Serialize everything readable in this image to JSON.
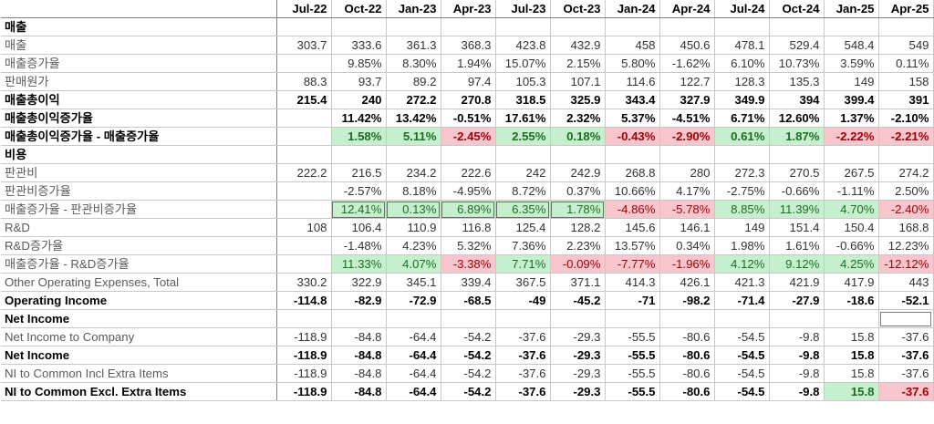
{
  "columns": [
    "Jul-22",
    "Oct-22",
    "Jan-23",
    "Apr-23",
    "Jul-23",
    "Oct-23",
    "Jan-24",
    "Apr-24",
    "Jul-24",
    "Oct-24",
    "Jan-25",
    "Apr-25"
  ],
  "rows": [
    {
      "label": "매출",
      "style": "bold",
      "cells": [
        "",
        "",
        "",
        "",
        "",
        "",
        "",
        "",
        "",
        "",
        "",
        ""
      ]
    },
    {
      "label": "매출",
      "style": "gray",
      "cells": [
        "303.7",
        "333.6",
        "361.3",
        "368.3",
        "423.8",
        "432.9",
        "458",
        "450.6",
        "478.1",
        "529.4",
        "548.4",
        "549"
      ]
    },
    {
      "label": "매출증가율",
      "style": "gray",
      "cells": [
        "",
        "9.85%",
        "8.30%",
        "1.94%",
        "15.07%",
        "2.15%",
        "5.80%",
        "-1.62%",
        "6.10%",
        "10.73%",
        "3.59%",
        "0.11%"
      ]
    },
    {
      "label": "판매원가",
      "style": "gray",
      "cells": [
        "88.3",
        "93.7",
        "89.2",
        "97.4",
        "105.3",
        "107.1",
        "114.6",
        "122.7",
        "128.3",
        "135.3",
        "149",
        "158"
      ]
    },
    {
      "label": "매출총이익",
      "style": "bold",
      "cells": [
        "215.4",
        "240",
        "272.2",
        "270.8",
        "318.5",
        "325.9",
        "343.4",
        "327.9",
        "349.9",
        "394",
        "399.4",
        "391"
      ]
    },
    {
      "label": "매출총이익증가율",
      "style": "bold",
      "cells": [
        "",
        "11.42%",
        "13.42%",
        "-0.51%",
        "17.61%",
        "2.32%",
        "5.37%",
        "-4.51%",
        "6.71%",
        "12.60%",
        "1.37%",
        "-2.10%"
      ]
    },
    {
      "label": "매출총이익증가율 - 매출증가율",
      "style": "bold",
      "cells": [
        "",
        "1.58%",
        "5.11%",
        "-2.45%",
        "2.55%",
        "0.18%",
        "-0.43%",
        "-2.90%",
        "0.61%",
        "1.87%",
        "-2.22%",
        "-2.21%"
      ],
      "fills": [
        "",
        "g",
        "g",
        "r",
        "g",
        "g",
        "r",
        "r",
        "g",
        "g",
        "r",
        "r"
      ]
    },
    {
      "label": "비용",
      "style": "bold",
      "cells": [
        "",
        "",
        "",
        "",
        "",
        "",
        "",
        "",
        "",
        "",
        "",
        ""
      ]
    },
    {
      "label": "판관비",
      "style": "gray",
      "cells": [
        "222.2",
        "216.5",
        "234.2",
        "222.6",
        "242",
        "242.9",
        "268.8",
        "280",
        "272.3",
        "270.5",
        "267.5",
        "274.2"
      ]
    },
    {
      "label": "판관비증가율",
      "style": "gray",
      "cells": [
        "",
        "-2.57%",
        "8.18%",
        "-4.95%",
        "8.72%",
        "0.37%",
        "10.66%",
        "4.17%",
        "-2.75%",
        "-0.66%",
        "-1.11%",
        "2.50%"
      ]
    },
    {
      "label": "매출증가율 - 판관비증가율",
      "style": "gray",
      "cells": [
        "",
        "12.41%",
        "0.13%",
        "6.89%",
        "6.35%",
        "1.78%",
        "-4.86%",
        "-5.78%",
        "8.85%",
        "11.39%",
        "4.70%",
        "-2.40%"
      ],
      "fills": [
        "",
        "g",
        "g",
        "g",
        "g",
        "g",
        "r",
        "r",
        "g",
        "g",
        "g",
        "r"
      ],
      "boxed": [
        1,
        2,
        3,
        4,
        5
      ]
    },
    {
      "label": "R&D",
      "style": "gray",
      "cells": [
        "108",
        "106.4",
        "110.9",
        "116.8",
        "125.4",
        "128.2",
        "145.6",
        "146.1",
        "149",
        "151.4",
        "150.4",
        "168.8"
      ]
    },
    {
      "label": "R&D증가율",
      "style": "gray",
      "cells": [
        "",
        "-1.48%",
        "4.23%",
        "5.32%",
        "7.36%",
        "2.23%",
        "13.57%",
        "0.34%",
        "1.98%",
        "1.61%",
        "-0.66%",
        "12.23%"
      ]
    },
    {
      "label": "매출증가율 - R&D증가율",
      "style": "gray",
      "cells": [
        "",
        "11.33%",
        "4.07%",
        "-3.38%",
        "7.71%",
        "-0.09%",
        "-7.77%",
        "-1.96%",
        "4.12%",
        "9.12%",
        "4.25%",
        "-12.12%"
      ],
      "fills": [
        "",
        "g",
        "g",
        "r",
        "g",
        "r",
        "r",
        "r",
        "g",
        "g",
        "g",
        "r"
      ]
    },
    {
      "label": "Other Operating Expenses, Total",
      "style": "gray",
      "cells": [
        "330.2",
        "322.9",
        "345.1",
        "339.4",
        "367.5",
        "371.1",
        "414.3",
        "426.1",
        "421.3",
        "421.9",
        "417.9",
        "443"
      ]
    },
    {
      "label": "Operating Income",
      "style": "bold",
      "cells": [
        "-114.8",
        "-82.9",
        "-72.9",
        "-68.5",
        "-49",
        "-45.2",
        "-71",
        "-98.2",
        "-71.4",
        "-27.9",
        "-18.6",
        "-52.1"
      ]
    },
    {
      "label": "Net Income",
      "style": "bold",
      "cells": [
        "",
        "",
        "",
        "",
        "",
        "",
        "",
        "",
        "",
        "",
        "",
        ""
      ],
      "selected": [
        11
      ]
    },
    {
      "label": "Net Income to Company",
      "style": "gray",
      "cells": [
        "-118.9",
        "-84.8",
        "-64.4",
        "-54.2",
        "-37.6",
        "-29.3",
        "-55.5",
        "-80.6",
        "-54.5",
        "-9.8",
        "15.8",
        "-37.6"
      ]
    },
    {
      "label": "Net Income",
      "style": "bold",
      "cells": [
        "-118.9",
        "-84.8",
        "-64.4",
        "-54.2",
        "-37.6",
        "-29.3",
        "-55.5",
        "-80.6",
        "-54.5",
        "-9.8",
        "15.8",
        "-37.6"
      ]
    },
    {
      "label": "NI to Common Incl Extra Items",
      "style": "gray",
      "cells": [
        "-118.9",
        "-84.8",
        "-64.4",
        "-54.2",
        "-37.6",
        "-29.3",
        "-55.5",
        "-80.6",
        "-54.5",
        "-9.8",
        "15.8",
        "-37.6"
      ]
    },
    {
      "label": "NI to Common Excl. Extra Items",
      "style": "bold",
      "cells": [
        "-118.9",
        "-84.8",
        "-64.4",
        "-54.2",
        "-37.6",
        "-29.3",
        "-55.5",
        "-80.6",
        "-54.5",
        "-9.8",
        "15.8",
        "-37.6"
      ],
      "fills": [
        "",
        "",
        "",
        "",
        "",
        "",
        "",
        "",
        "",
        "",
        "g",
        "r"
      ]
    }
  ]
}
